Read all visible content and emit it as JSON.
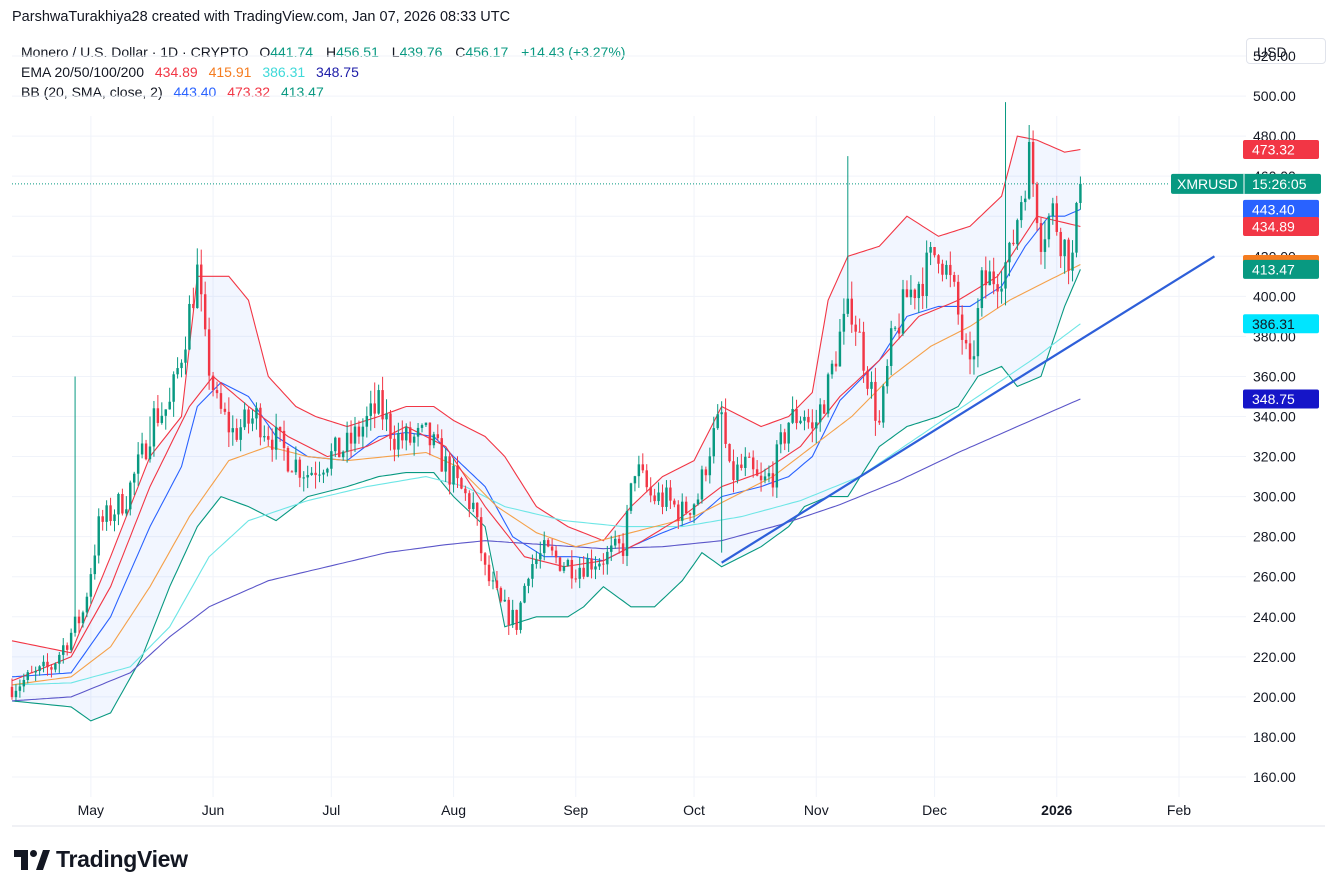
{
  "header": {
    "attribution": "ParshwaTurakhiya28 created with TradingView.com, Jan 07, 2026 08:33 UTC"
  },
  "legend": {
    "symbol": "Monero / U.S. Dollar · 1D · CRYPTO",
    "o_label": "O",
    "o_value": "441.74",
    "h_label": "H",
    "h_value": "456.51",
    "l_label": "L",
    "l_value": "439.76",
    "c_label": "C",
    "c_value": "456.17",
    "change": "+14.43 (+3.27%)",
    "ema_label": "EMA 20/50/100/200",
    "ema_values": [
      "434.89",
      "415.91",
      "386.31",
      "348.75"
    ],
    "bb_label": "BB (20, SMA, close, 2)",
    "bb_values": [
      "443.40",
      "473.32",
      "413.47"
    ]
  },
  "currency": "USD",
  "brand": {
    "name": "TradingView"
  },
  "colors": {
    "up": "#089981",
    "down": "#f23645",
    "ema20": "#f23645",
    "ema50": "#f5a14a",
    "ema100": "#6ee6e6",
    "ema200": "#5b56c9",
    "bb_basis": "#2962ff",
    "bb_upper": "#f23645",
    "bb_lower": "#089981",
    "trendline": "#2e5fd9"
  },
  "chart_data": {
    "type": "candlestick",
    "symbol_tag": "XMRUSD",
    "countdown": "15:26:05",
    "y_ticks": [
      "160.00",
      "180.00",
      "200.00",
      "220.00",
      "240.00",
      "260.00",
      "280.00",
      "300.00",
      "320.00",
      "340.00",
      "360.00",
      "380.00",
      "400.00",
      "420.00",
      "440.00",
      "460.00",
      "480.00",
      "500.00",
      "520.00"
    ],
    "ylim": [
      150,
      530
    ],
    "x_ticks": [
      {
        "label": "May",
        "day": 5
      },
      {
        "label": "Jun",
        "day": 36
      },
      {
        "label": "Jul",
        "day": 66
      },
      {
        "label": "Aug",
        "day": 97
      },
      {
        "label": "Sep",
        "day": 128
      },
      {
        "label": "Oct",
        "day": 158
      },
      {
        "label": "Nov",
        "day": 189
      },
      {
        "label": "Dec",
        "day": 219
      },
      {
        "label": "2026",
        "day": 250,
        "bold": true
      },
      {
        "label": "Feb",
        "day": 281
      }
    ],
    "x_range_days": [
      -15,
      298
    ],
    "last_day": 256,
    "last_price": 456.17,
    "price_labels": [
      {
        "text": "473.32",
        "value": 473.32,
        "color": "#f23645"
      },
      {
        "text": "443.40",
        "value": 443.4,
        "color": "#2962ff"
      },
      {
        "text": "434.89",
        "value": 434.89,
        "color": "#f23645"
      },
      {
        "text": "415.91",
        "value": 415.91,
        "color": "#f57c1f"
      },
      {
        "text": "413.47",
        "value": 413.47,
        "color": "#089981"
      },
      {
        "text": "386.31",
        "value": 386.31,
        "color": "#00e5ff",
        "text_color": "#131722"
      },
      {
        "text": "348.75",
        "value": 348.75,
        "color": "#1515c8"
      }
    ],
    "trendline": {
      "from": {
        "day": 165,
        "price": 267
      },
      "to": {
        "day": 290,
        "price": 420
      }
    },
    "close_path": [
      [
        -15,
        205
      ],
      [
        -5,
        215
      ],
      [
        3,
        242
      ],
      [
        7,
        285
      ],
      [
        14,
        300
      ],
      [
        18,
        320
      ],
      [
        21,
        340
      ],
      [
        25,
        345
      ],
      [
        28,
        372
      ],
      [
        32,
        412
      ],
      [
        34,
        375
      ],
      [
        37,
        345
      ],
      [
        41,
        332
      ],
      [
        47,
        340
      ],
      [
        52,
        328
      ],
      [
        55,
        320
      ],
      [
        60,
        312
      ],
      [
        64,
        318
      ],
      [
        70,
        325
      ],
      [
        74,
        335
      ],
      [
        78,
        345
      ],
      [
        82,
        330
      ],
      [
        86,
        328
      ],
      [
        90,
        330
      ],
      [
        93,
        322
      ],
      [
        98,
        305
      ],
      [
        102,
        295
      ],
      [
        105,
        262
      ],
      [
        109,
        245
      ],
      [
        113,
        237
      ],
      [
        116,
        265
      ],
      [
        120,
        272
      ],
      [
        124,
        268
      ],
      [
        128,
        265
      ],
      [
        132,
        268
      ],
      [
        136,
        270
      ],
      [
        140,
        275
      ],
      [
        143,
        315
      ],
      [
        147,
        300
      ],
      [
        151,
        298
      ],
      [
        155,
        292
      ],
      [
        159,
        300
      ],
      [
        162,
        325
      ],
      [
        165,
        340
      ],
      [
        167,
        310
      ],
      [
        171,
        315
      ],
      [
        175,
        305
      ],
      [
        178,
        312
      ],
      [
        182,
        338
      ],
      [
        186,
        342
      ],
      [
        188,
        332
      ],
      [
        192,
        355
      ],
      [
        195,
        380
      ],
      [
        198,
        395
      ],
      [
        201,
        370
      ],
      [
        205,
        335
      ],
      [
        208,
        375
      ],
      [
        212,
        400
      ],
      [
        216,
        410
      ],
      [
        220,
        425
      ],
      [
        224,
        400
      ],
      [
        228,
        360
      ],
      [
        231,
        405
      ],
      [
        235,
        412
      ],
      [
        238,
        418
      ],
      [
        240,
        440
      ],
      [
        243,
        470
      ],
      [
        246,
        432
      ],
      [
        249,
        442
      ],
      [
        252,
        425
      ],
      [
        254,
        418
      ],
      [
        256,
        456
      ]
    ],
    "spikes": [
      {
        "day": 1,
        "high": 360
      },
      {
        "day": 20,
        "high": 340
      },
      {
        "day": 77,
        "high": 357
      },
      {
        "day": 197,
        "high": 470
      },
      {
        "day": 237,
        "high": 497
      },
      {
        "day": 165,
        "low": 272
      }
    ],
    "ema20": [
      [
        -15,
        208
      ],
      [
        0,
        220
      ],
      [
        10,
        255
      ],
      [
        20,
        305
      ],
      [
        30,
        345
      ],
      [
        36,
        360
      ],
      [
        45,
        345
      ],
      [
        55,
        330
      ],
      [
        65,
        320
      ],
      [
        75,
        325
      ],
      [
        85,
        335
      ],
      [
        95,
        325
      ],
      [
        105,
        295
      ],
      [
        115,
        270
      ],
      [
        125,
        265
      ],
      [
        135,
        268
      ],
      [
        145,
        278
      ],
      [
        155,
        290
      ],
      [
        165,
        305
      ],
      [
        175,
        312
      ],
      [
        185,
        325
      ],
      [
        195,
        350
      ],
      [
        205,
        368
      ],
      [
        215,
        390
      ],
      [
        225,
        398
      ],
      [
        235,
        410
      ],
      [
        245,
        440
      ],
      [
        256,
        434.89
      ]
    ],
    "ema50": [
      [
        -15,
        206
      ],
      [
        0,
        210
      ],
      [
        10,
        225
      ],
      [
        20,
        255
      ],
      [
        30,
        290
      ],
      [
        40,
        318
      ],
      [
        50,
        325
      ],
      [
        60,
        320
      ],
      [
        70,
        318
      ],
      [
        80,
        320
      ],
      [
        90,
        322
      ],
      [
        98,
        315
      ],
      [
        108,
        295
      ],
      [
        118,
        282
      ],
      [
        128,
        275
      ],
      [
        138,
        280
      ],
      [
        148,
        285
      ],
      [
        158,
        290
      ],
      [
        168,
        300
      ],
      [
        178,
        310
      ],
      [
        188,
        325
      ],
      [
        198,
        340
      ],
      [
        208,
        360
      ],
      [
        218,
        375
      ],
      [
        228,
        385
      ],
      [
        238,
        398
      ],
      [
        248,
        408
      ],
      [
        256,
        415.91
      ]
    ],
    "ema100": [
      [
        -15,
        206
      ],
      [
        0,
        207
      ],
      [
        15,
        215
      ],
      [
        25,
        235
      ],
      [
        35,
        270
      ],
      [
        45,
        288
      ],
      [
        60,
        298
      ],
      [
        75,
        305
      ],
      [
        90,
        310
      ],
      [
        100,
        305
      ],
      [
        110,
        295
      ],
      [
        125,
        288
      ],
      [
        140,
        285
      ],
      [
        155,
        285
      ],
      [
        170,
        290
      ],
      [
        185,
        298
      ],
      [
        200,
        310
      ],
      [
        215,
        330
      ],
      [
        230,
        350
      ],
      [
        245,
        370
      ],
      [
        256,
        386.31
      ]
    ],
    "ema200": [
      [
        -15,
        198
      ],
      [
        0,
        200
      ],
      [
        15,
        212
      ],
      [
        25,
        230
      ],
      [
        35,
        245
      ],
      [
        50,
        258
      ],
      [
        65,
        265
      ],
      [
        80,
        272
      ],
      [
        95,
        276
      ],
      [
        105,
        278
      ],
      [
        120,
        276
      ],
      [
        135,
        274
      ],
      [
        150,
        275
      ],
      [
        165,
        278
      ],
      [
        180,
        286
      ],
      [
        195,
        296
      ],
      [
        210,
        308
      ],
      [
        225,
        322
      ],
      [
        240,
        335
      ],
      [
        256,
        348.75
      ]
    ],
    "bb_upper": [
      [
        -15,
        228
      ],
      [
        0,
        222
      ],
      [
        10,
        270
      ],
      [
        20,
        320
      ],
      [
        28,
        340
      ],
      [
        32,
        410
      ],
      [
        40,
        410
      ],
      [
        45,
        398
      ],
      [
        50,
        360
      ],
      [
        57,
        345
      ],
      [
        62,
        340
      ],
      [
        70,
        335
      ],
      [
        78,
        340
      ],
      [
        85,
        345
      ],
      [
        92,
        345
      ],
      [
        97,
        338
      ],
      [
        105,
        330
      ],
      [
        110,
        320
      ],
      [
        118,
        295
      ],
      [
        126,
        285
      ],
      [
        135,
        278
      ],
      [
        142,
        295
      ],
      [
        150,
        310
      ],
      [
        158,
        318
      ],
      [
        165,
        345
      ],
      [
        175,
        335
      ],
      [
        182,
        340
      ],
      [
        188,
        352
      ],
      [
        192,
        398
      ],
      [
        197,
        420
      ],
      [
        205,
        425
      ],
      [
        212,
        440
      ],
      [
        220,
        430
      ],
      [
        228,
        435
      ],
      [
        236,
        450
      ],
      [
        240,
        480
      ],
      [
        245,
        478
      ],
      [
        252,
        472
      ],
      [
        256,
        473.32
      ]
    ],
    "bb_basis": [
      [
        -15,
        210
      ],
      [
        0,
        212
      ],
      [
        10,
        240
      ],
      [
        20,
        285
      ],
      [
        28,
        315
      ],
      [
        32,
        345
      ],
      [
        38,
        357
      ],
      [
        45,
        350
      ],
      [
        52,
        330
      ],
      [
        60,
        320
      ],
      [
        70,
        318
      ],
      [
        78,
        330
      ],
      [
        85,
        332
      ],
      [
        92,
        330
      ],
      [
        97,
        320
      ],
      [
        105,
        305
      ],
      [
        112,
        280
      ],
      [
        120,
        270
      ],
      [
        128,
        270
      ],
      [
        135,
        268
      ],
      [
        142,
        275
      ],
      [
        150,
        282
      ],
      [
        158,
        288
      ],
      [
        165,
        300
      ],
      [
        175,
        305
      ],
      [
        182,
        310
      ],
      [
        188,
        320
      ],
      [
        195,
        348
      ],
      [
        205,
        368
      ],
      [
        212,
        390
      ],
      [
        220,
        395
      ],
      [
        228,
        395
      ],
      [
        236,
        405
      ],
      [
        242,
        425
      ],
      [
        248,
        440
      ],
      [
        252,
        440
      ],
      [
        256,
        443.4
      ]
    ],
    "bb_lower": [
      [
        -15,
        198
      ],
      [
        0,
        195
      ],
      [
        5,
        188
      ],
      [
        10,
        192
      ],
      [
        18,
        220
      ],
      [
        25,
        255
      ],
      [
        32,
        285
      ],
      [
        38,
        300
      ],
      [
        45,
        295
      ],
      [
        52,
        288
      ],
      [
        60,
        300
      ],
      [
        70,
        305
      ],
      [
        78,
        310
      ],
      [
        85,
        312
      ],
      [
        92,
        312
      ],
      [
        97,
        300
      ],
      [
        105,
        285
      ],
      [
        110,
        235
      ],
      [
        118,
        240
      ],
      [
        126,
        240
      ],
      [
        130,
        245
      ],
      [
        135,
        255
      ],
      [
        142,
        245
      ],
      [
        148,
        245
      ],
      [
        155,
        258
      ],
      [
        160,
        272
      ],
      [
        165,
        265
      ],
      [
        175,
        275
      ],
      [
        182,
        285
      ],
      [
        186,
        295
      ],
      [
        192,
        300
      ],
      [
        197,
        300
      ],
      [
        205,
        325
      ],
      [
        212,
        335
      ],
      [
        220,
        340
      ],
      [
        225,
        345
      ],
      [
        230,
        360
      ],
      [
        236,
        365
      ],
      [
        240,
        355
      ],
      [
        246,
        360
      ],
      [
        252,
        395
      ],
      [
        256,
        413.47
      ]
    ]
  }
}
